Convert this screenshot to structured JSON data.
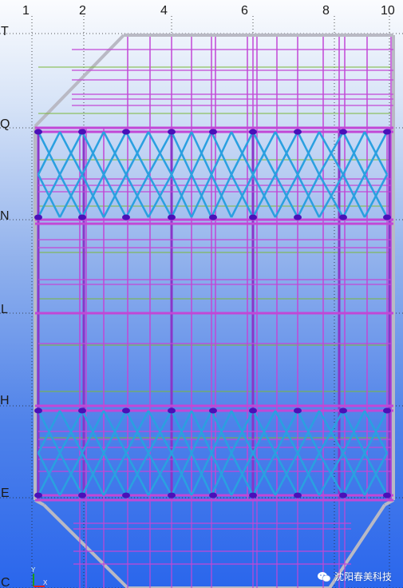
{
  "viewport": {
    "gridlines_x": [
      "1",
      "2",
      "4",
      "6",
      "8",
      "10"
    ],
    "gridlines_y": [
      "T",
      "Q",
      "N",
      "L",
      "H",
      "E",
      "C"
    ],
    "colors": {
      "beam": "#c247d6",
      "column": "#8a35c8",
      "brace": "#2aa0e0",
      "outline": "#b9b9c4",
      "node": "#4a10b8",
      "secondary": "#7ab83a",
      "gridline": "#222222"
    }
  },
  "axis_triad": {
    "y_label": "Y",
    "x_label": "X"
  },
  "watermark": {
    "text": "沈阳春美科技",
    "icon": "wechat-icon"
  }
}
